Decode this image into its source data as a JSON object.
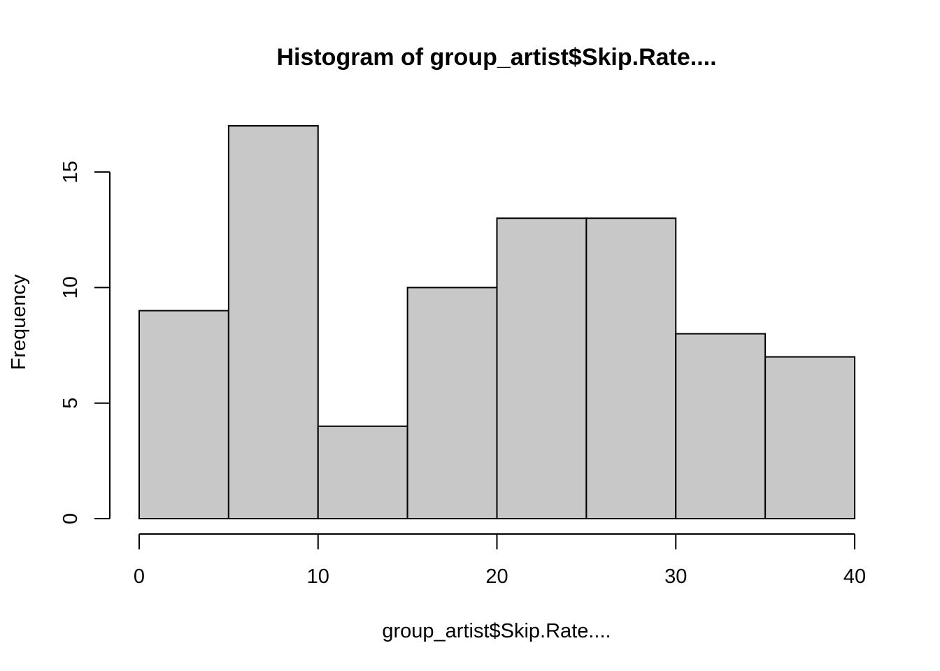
{
  "chart_data": {
    "type": "bar",
    "subtype": "histogram",
    "title": "Histogram of group_artist$Skip.Rate....",
    "xlabel": "group_artist$Skip.Rate....",
    "ylabel": "Frequency",
    "bins": [
      {
        "x0": 0,
        "x1": 5,
        "count": 9
      },
      {
        "x0": 5,
        "x1": 10,
        "count": 17
      },
      {
        "x0": 10,
        "x1": 15,
        "count": 4
      },
      {
        "x0": 15,
        "x1": 20,
        "count": 10
      },
      {
        "x0": 20,
        "x1": 25,
        "count": 13
      },
      {
        "x0": 25,
        "x1": 30,
        "count": 13
      },
      {
        "x0": 30,
        "x1": 35,
        "count": 8
      },
      {
        "x0": 35,
        "x1": 40,
        "count": 7
      }
    ],
    "xlim": [
      0,
      40
    ],
    "ylim": [
      0,
      17
    ],
    "x_ticks": [
      "0",
      "10",
      "20",
      "30",
      "40"
    ],
    "y_ticks": [
      "0",
      "5",
      "10",
      "15"
    ],
    "bar_color": "#c8c8c8",
    "edge_color": "#000000",
    "grid": false,
    "legend": "none"
  }
}
